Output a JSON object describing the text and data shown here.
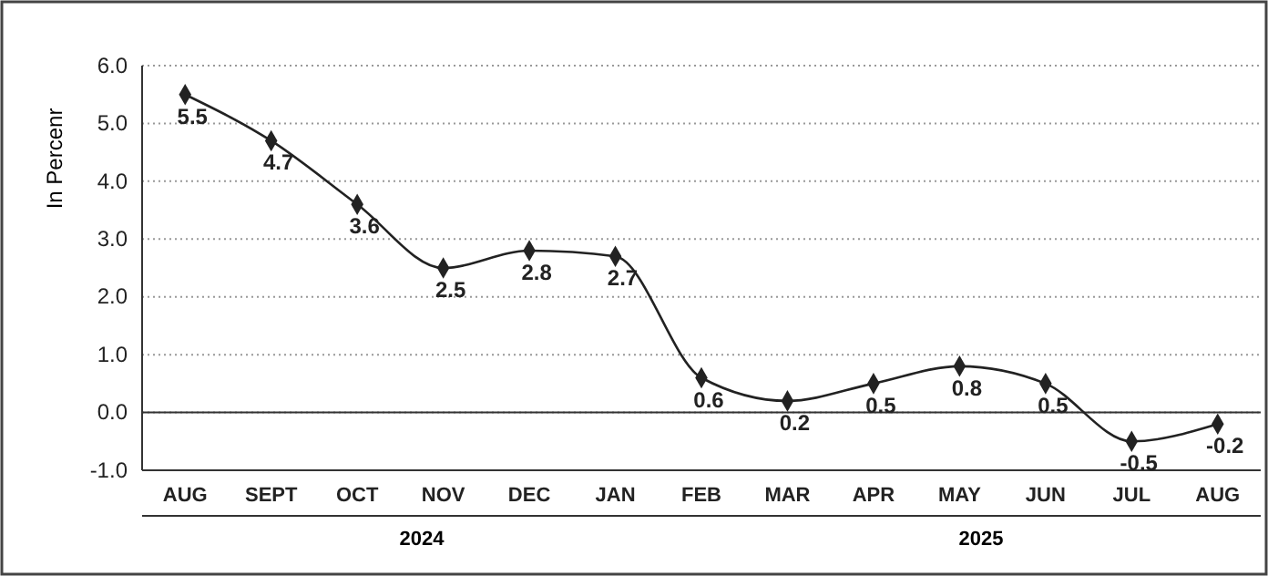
{
  "chart_data": {
    "type": "line",
    "ylabel": "In Percenr",
    "categories": [
      "AUG",
      "SEPT",
      "OCT",
      "NOV",
      "DEC",
      "JAN",
      "FEB",
      "MAR",
      "APR",
      "MAY",
      "JUN",
      "JUL",
      "AUG"
    ],
    "series": [
      {
        "color": "#222222",
        "values": [
          5.5,
          4.7,
          3.6,
          2.5,
          2.8,
          2.7,
          0.6,
          0.2,
          0.5,
          0.8,
          0.5,
          -0.5,
          -0.2
        ]
      }
    ],
    "ylim": [
      -1,
      6
    ],
    "yticks": [
      {
        "value": -1,
        "label": "-1.0"
      },
      {
        "value": 0,
        "label": "0.0"
      },
      {
        "value": 1,
        "label": "1.0"
      },
      {
        "value": 2,
        "label": "2.0"
      },
      {
        "value": 3,
        "label": "3.0"
      },
      {
        "value": 4,
        "label": "4.0"
      },
      {
        "value": 5,
        "label": "5.0"
      },
      {
        "value": 6,
        "label": "6.0"
      }
    ],
    "grid": "y",
    "marker": "diamond",
    "line_style": "solid",
    "data_labels": true,
    "annotations": [
      "2024",
      "2025"
    ]
  }
}
